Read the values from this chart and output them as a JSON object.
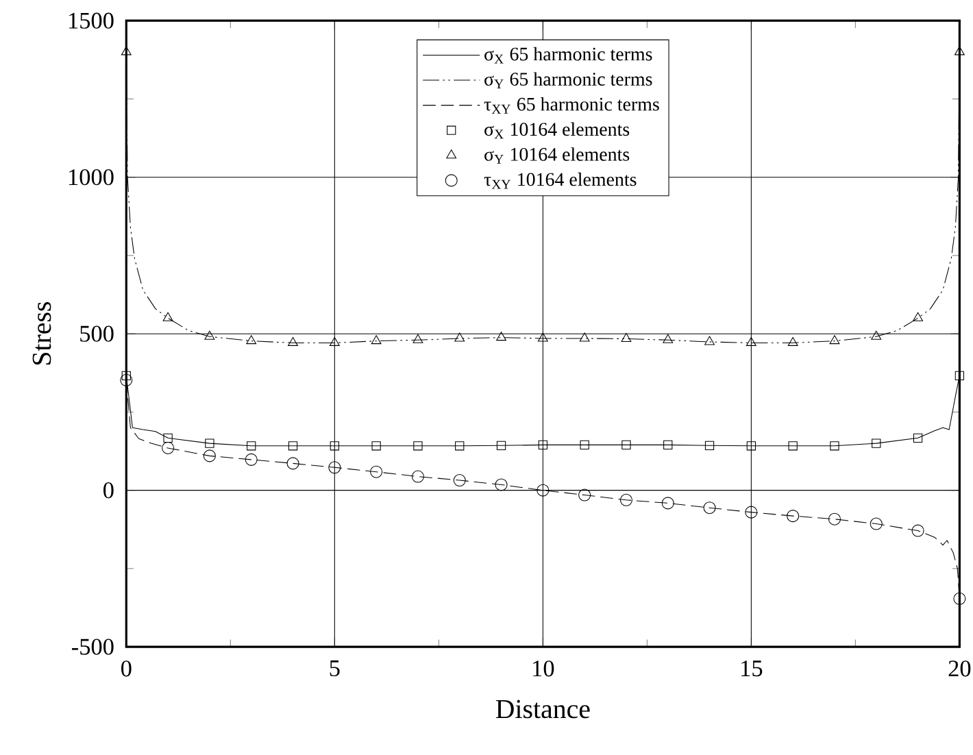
{
  "chart_data": {
    "type": "line",
    "xlabel": "Distance",
    "ylabel": "Stress",
    "xlim": [
      0,
      20
    ],
    "ylim": [
      -500,
      1500
    ],
    "xticks": [
      0,
      {
        "value": 2.5,
        "label": null
      },
      5,
      {
        "value": 7.5,
        "label": null
      },
      10,
      {
        "value": 12.5,
        "label": null
      },
      15,
      {
        "value": 17.5,
        "label": null
      },
      20
    ],
    "yticks": [
      -500,
      {
        "value": -250,
        "label": null
      },
      0,
      {
        "value": 250,
        "label": null
      },
      500,
      {
        "value": 750,
        "label": null
      },
      1000,
      {
        "value": 1250,
        "label": null
      },
      1500
    ],
    "grid": true,
    "legend": "top",
    "series": [
      {
        "name": "σ$_{X}$ 65 harmonic terms",
        "line_style": "solid",
        "marker": "none",
        "color": "#000000",
        "x": [
          0,
          0.15,
          0.4,
          0.7,
          1,
          2,
          3,
          4,
          5,
          6,
          7,
          8,
          9,
          10,
          11,
          12,
          13,
          14,
          15,
          16,
          17,
          18,
          19,
          19.4,
          19.6,
          19.75,
          19.9,
          20
        ],
        "values": [
          366,
          200,
          194,
          188,
          167,
          150,
          142,
          142,
          142,
          142,
          142,
          142,
          143,
          145,
          145,
          145,
          145,
          143,
          142,
          142,
          142,
          150,
          167,
          190,
          200,
          194,
          300,
          366
        ]
      },
      {
        "name": "σ$_{Y}$ 65 harmonic terms",
        "line_style": "dotted",
        "marker": "none",
        "color": "#000000",
        "x": [
          0,
          0.03,
          0.1,
          0.2,
          0.4,
          0.7,
          1,
          1.5,
          2,
          3,
          4,
          5,
          6,
          7,
          8,
          9,
          10,
          11,
          12,
          13,
          14,
          15,
          16,
          17,
          18,
          18.5,
          19,
          19.3,
          19.6,
          19.8,
          19.9,
          19.97,
          20
        ],
        "values": [
          1400,
          1000,
          840,
          740,
          640,
          580,
          550,
          510,
          491,
          477,
          471,
          471,
          477,
          480,
          485,
          488,
          485,
          485,
          484,
          480,
          474,
          471,
          471,
          477,
          491,
          510,
          550,
          580,
          640,
          740,
          840,
          1000,
          1400
        ]
      },
      {
        "name": "τ$_{XY}$ 65 harmonic terms",
        "line_style": "dashed",
        "marker": "none",
        "color": "#000000",
        "x": [
          0,
          0.1,
          0.3,
          0.6,
          1,
          2,
          3,
          4,
          5,
          6,
          7,
          8,
          9,
          10,
          11,
          12,
          13,
          14,
          15,
          16,
          17,
          18,
          19,
          19.4,
          19.6,
          19.7,
          19.85,
          19.95,
          20
        ],
        "values": [
          352,
          200,
          165,
          150,
          135,
          110,
          98,
          86,
          73,
          59,
          44,
          32,
          18,
          0,
          -15,
          -31,
          -41,
          -56,
          -70,
          -82,
          -92,
          -107,
          -129,
          -150,
          -175,
          -160,
          -200,
          -250,
          -346
        ]
      },
      {
        "name": "σ$_{X}$ 10164 elements",
        "type": "scatter",
        "marker": "square",
        "color": "#000000",
        "x": [
          0,
          1,
          2,
          3,
          4,
          5,
          6,
          7,
          8,
          9,
          10,
          11,
          12,
          13,
          14,
          15,
          16,
          17,
          18,
          19,
          20
        ],
        "values": [
          366,
          167,
          150,
          142,
          142,
          142,
          142,
          142,
          142,
          143,
          145,
          145,
          145,
          145,
          143,
          142,
          142,
          142,
          150,
          167,
          366
        ]
      },
      {
        "name": "σ$_{Y}$ 10164 elements",
        "type": "scatter",
        "marker": "triangle",
        "color": "#000000",
        "x": [
          0,
          1,
          2,
          3,
          4,
          5,
          6,
          7,
          8,
          9,
          10,
          11,
          12,
          13,
          14,
          15,
          16,
          17,
          18,
          19,
          20
        ],
        "values": [
          1400,
          550,
          491,
          477,
          471,
          471,
          477,
          480,
          485,
          488,
          485,
          485,
          484,
          480,
          474,
          471,
          471,
          477,
          491,
          550,
          1400
        ]
      },
      {
        "name": "τ$_{XY}$ 10164 elements",
        "type": "scatter",
        "marker": "circle",
        "color": "#000000",
        "x": [
          0,
          1,
          2,
          3,
          4,
          5,
          6,
          7,
          8,
          9,
          10,
          11,
          12,
          13,
          14,
          15,
          16,
          17,
          18,
          19,
          20
        ],
        "values": [
          352,
          135,
          110,
          98,
          86,
          73,
          59,
          44,
          32,
          18,
          0,
          -15,
          -31,
          -41,
          -56,
          -70,
          -82,
          -92,
          -107,
          -129,
          -346
        ]
      }
    ]
  }
}
